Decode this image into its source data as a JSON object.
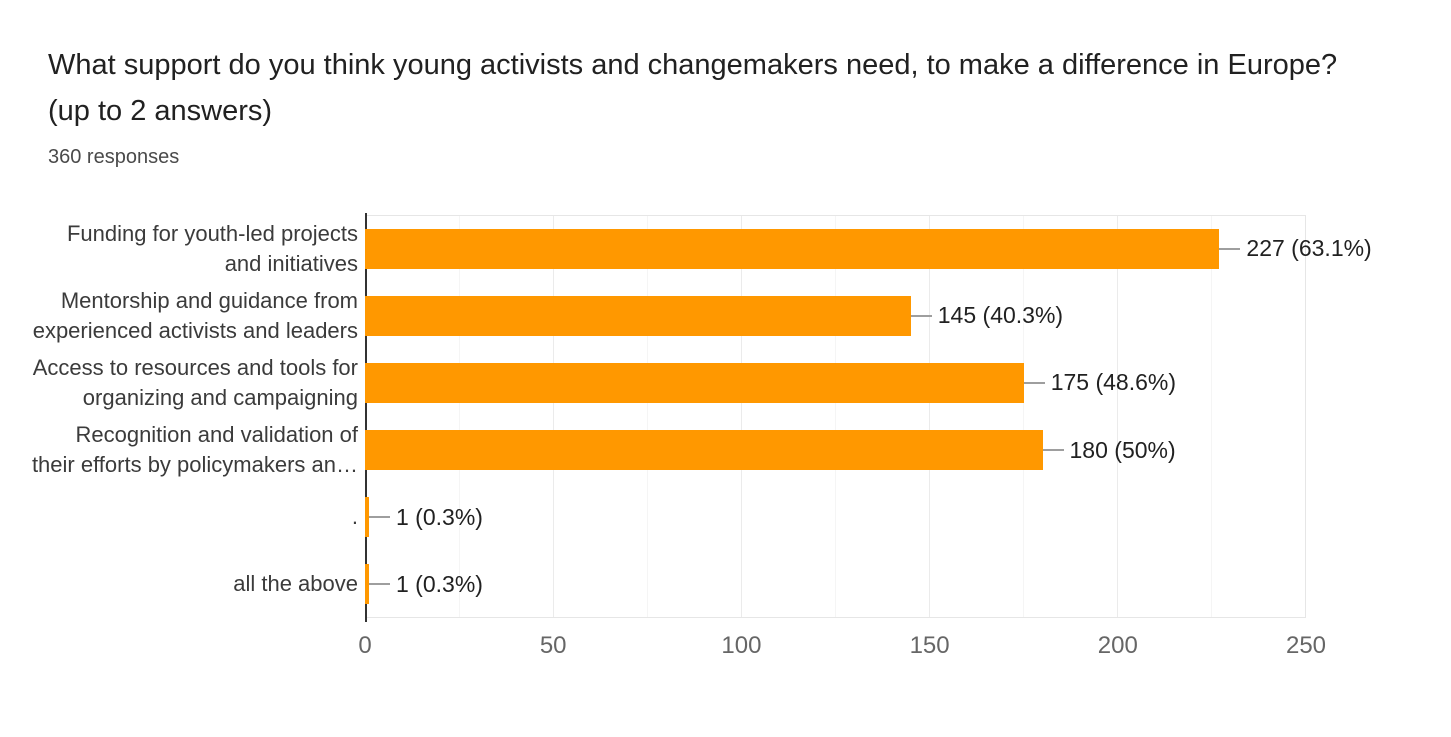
{
  "header": {
    "title": "What support do you think young activists and changemakers need, to make a difference in Europe? (up to 2 answers)",
    "title_lines": [
      "What support do you think young activists and changemakers need, to make a difference in Europe?",
      "(up to 2 answers)"
    ],
    "subtitle": "360 responses"
  },
  "chart_data": {
    "type": "bar",
    "orientation": "horizontal",
    "title": "What support do you think young activists and changemakers need, to make a difference in Europe? (up to 2 answers)",
    "subtitle": "360 responses",
    "total_responses": 360,
    "categories": [
      "Funding for youth-led projects and initiatives",
      "Mentorship and guidance from experienced activists and leaders",
      "Access to resources and tools for organizing and campaigning",
      "Recognition and validation of their efforts by policymakers an…",
      ".",
      "all the above"
    ],
    "category_lines": [
      [
        "Funding for youth-led projects",
        "and initiatives"
      ],
      [
        "Mentorship and guidance from",
        "experienced activists and leaders"
      ],
      [
        "Access to resources and tools for",
        "organizing and campaigning"
      ],
      [
        "Recognition and validation of",
        "their efforts by policymakers an…"
      ],
      [
        "."
      ],
      [
        "all the above"
      ]
    ],
    "values": [
      227,
      145,
      175,
      180,
      1,
      1
    ],
    "percentages": [
      63.1,
      40.3,
      48.6,
      50,
      0.3,
      0.3
    ],
    "value_labels": [
      "227 (63.1%)",
      "145 (40.3%)",
      "175 (48.6%)",
      "180 (50%)",
      "1 (0.3%)",
      "1 (0.3%)"
    ],
    "xlim": [
      0,
      250
    ],
    "x_ticks": [
      {
        "value": 0,
        "label": "0"
      },
      {
        "value": 50,
        "label": "50"
      },
      {
        "value": 100,
        "label": "100"
      },
      {
        "value": 150,
        "label": "150"
      },
      {
        "value": 200,
        "label": "200"
      },
      {
        "value": 250,
        "label": "250"
      }
    ],
    "x_minor_gridlines": [
      25,
      75,
      125,
      175,
      225
    ],
    "grid": true,
    "legend": "none",
    "colors": {
      "bar": "#ff9800",
      "axis_line": "#333333",
      "gridline_major": "#ebebeb",
      "gridline_minor": "#f5f5f5",
      "leader_line": "#9e9e9e",
      "title_text": "#212121",
      "label_text": "#3b3b3b",
      "tick_text": "#666666"
    }
  }
}
